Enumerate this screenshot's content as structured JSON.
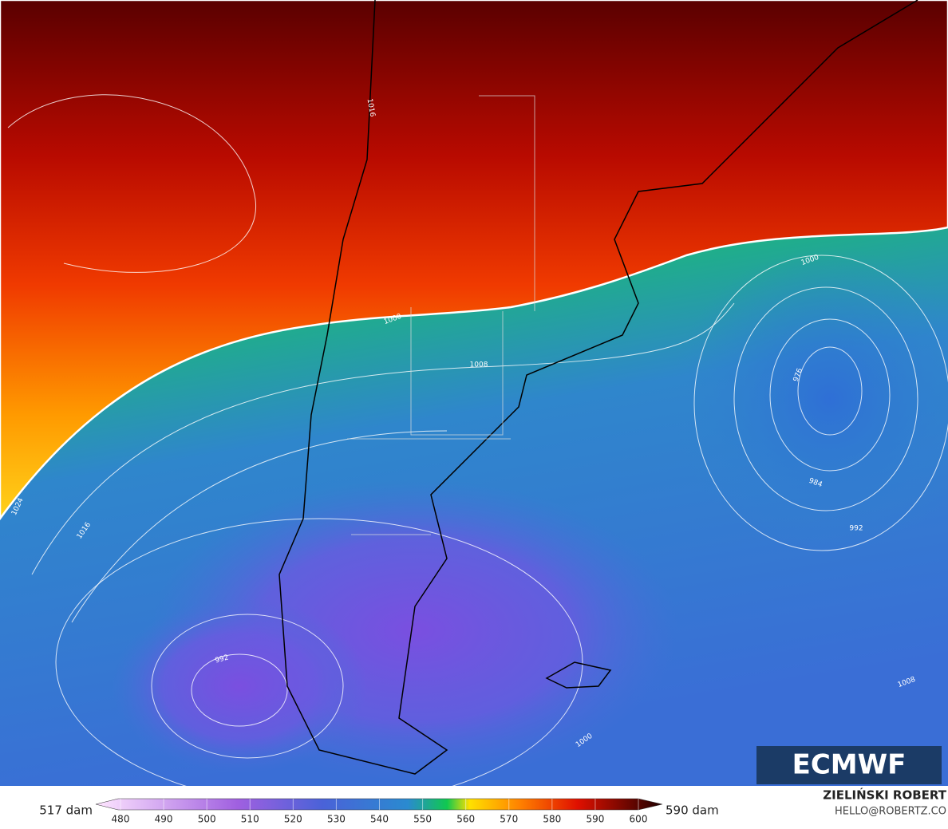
{
  "map": {
    "contour_labels": [
      "1016",
      "1024",
      "1016",
      "1008",
      "1000",
      "1000",
      "976",
      "984",
      "992",
      "992",
      "1000",
      "1008"
    ]
  },
  "logo": "ECMWF",
  "colorbar": {
    "min_label": "517 dam",
    "max_label": "590 dam",
    "ticks": [
      480,
      490,
      500,
      510,
      520,
      530,
      540,
      550,
      560,
      570,
      580,
      590,
      600
    ]
  },
  "author": "ZIELIŃSKI ROBERT",
  "contact": "HELLO@ROBERTZ.CO"
}
